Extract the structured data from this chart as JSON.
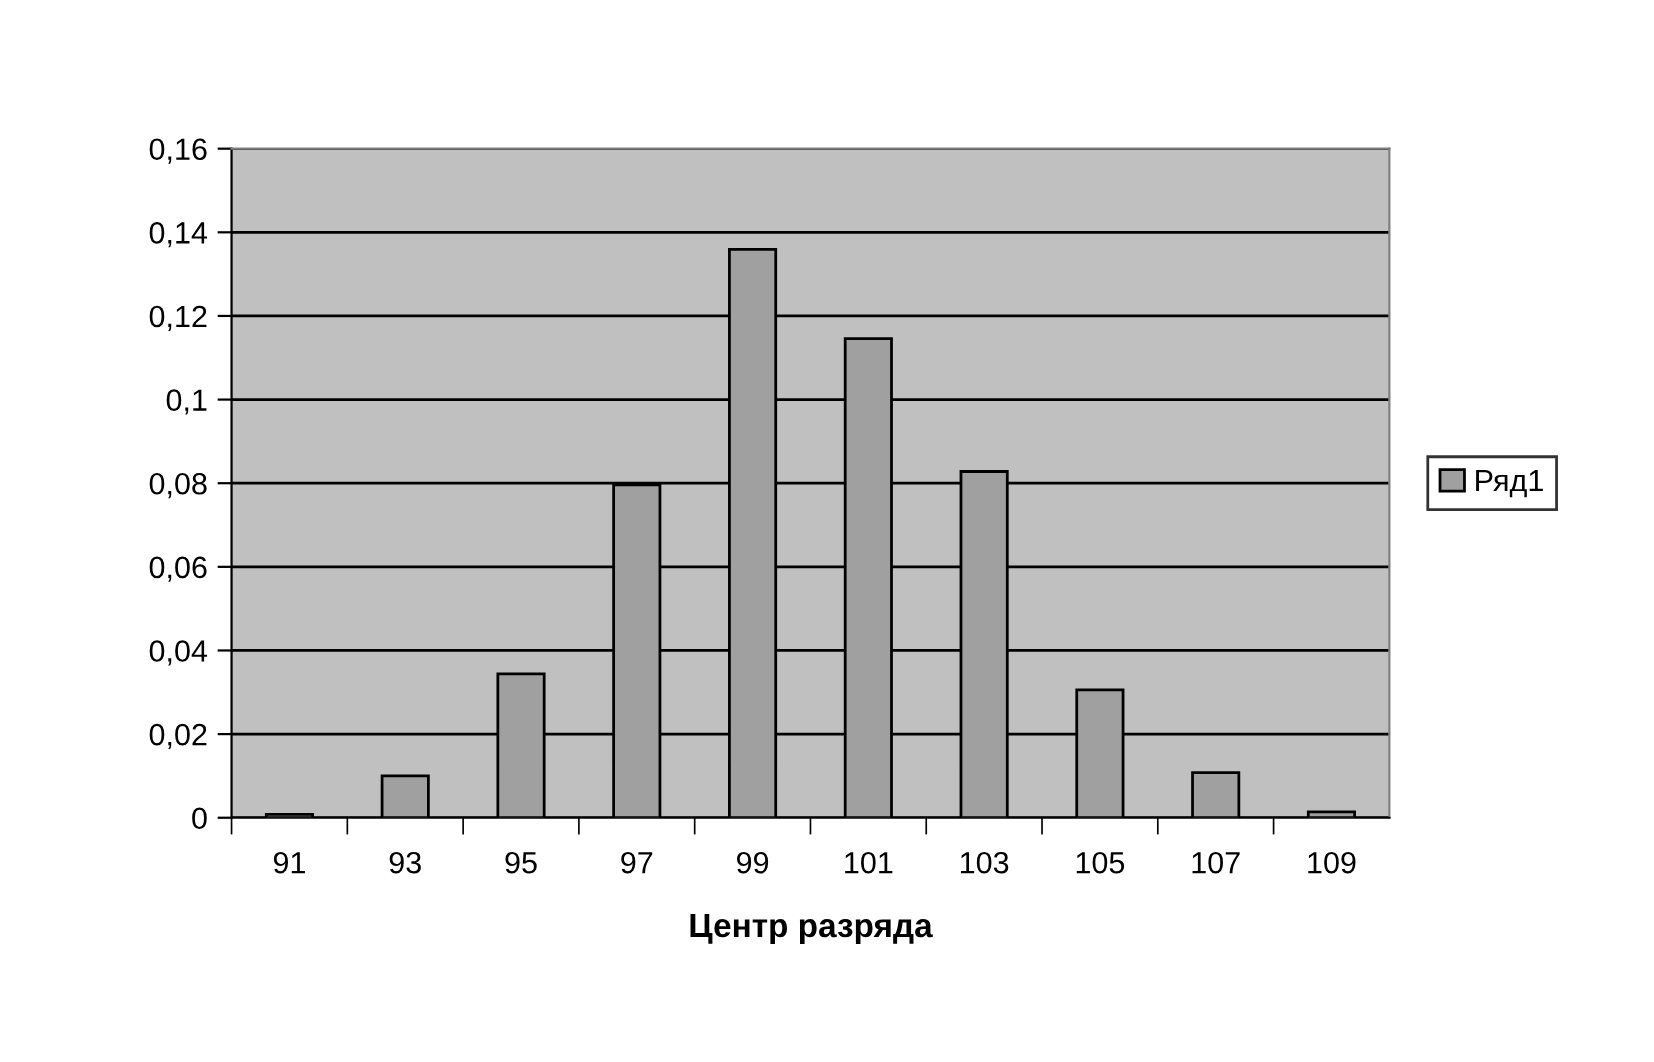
{
  "chart_data": {
    "type": "bar",
    "xlabel": "Центр разряда",
    "categories": [
      "91",
      "93",
      "95",
      "97",
      "99",
      "101",
      "103",
      "105",
      "107",
      "109"
    ],
    "series": [
      {
        "name": "Ряд1",
        "color": "#a0a0a0",
        "values": [
          0.0008,
          0.01,
          0.0344,
          0.0796,
          0.1359,
          0.1146,
          0.0828,
          0.0306,
          0.0108,
          0.0014
        ]
      }
    ],
    "ylim": [
      0,
      0.16
    ],
    "yticks": [
      {
        "value": 0,
        "label": "0"
      },
      {
        "value": 0.02,
        "label": "0,02"
      },
      {
        "value": 0.04,
        "label": "0,04"
      },
      {
        "value": 0.06,
        "label": "0,06"
      },
      {
        "value": 0.08,
        "label": "0,08"
      },
      {
        "value": 0.1,
        "label": "0,1"
      },
      {
        "value": 0.12,
        "label": "0,12"
      },
      {
        "value": 0.14,
        "label": "0,14"
      },
      {
        "value": 0.16,
        "label": "0,16"
      }
    ],
    "grid": "y",
    "legend": "right"
  }
}
